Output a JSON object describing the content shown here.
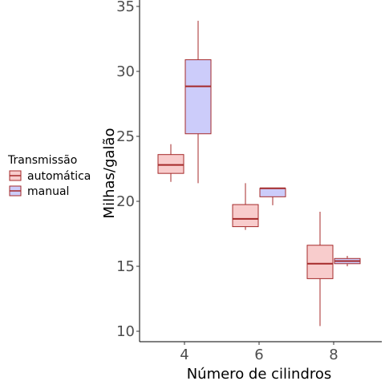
{
  "chart_data": {
    "type": "box",
    "xlabel": "Número de cilindros",
    "ylabel": "Milhas/galão",
    "ylim": [
      9.5,
      35
    ],
    "y_ticks": [
      10,
      15,
      20,
      25,
      30,
      35
    ],
    "categories": [
      "4",
      "6",
      "8"
    ],
    "grid": false,
    "legend": {
      "title": "Transmissão",
      "position": "left"
    },
    "series": [
      {
        "name": "automática",
        "fill": "#f8cccc",
        "stroke": "#a52a2a",
        "boxes": [
          {
            "category": "4",
            "min": 21.5,
            "q1": 22.15,
            "median": 22.8,
            "q3": 23.6,
            "max": 24.4
          },
          {
            "category": "6",
            "min": 17.8,
            "q1": 18.05,
            "median": 18.65,
            "q3": 19.75,
            "max": 21.4
          },
          {
            "category": "8",
            "min": 10.4,
            "q1": 14.05,
            "median": 15.2,
            "q3": 16.62,
            "max": 19.2
          }
        ]
      },
      {
        "name": "manual",
        "fill": "#ccccfa",
        "stroke": "#a52a2a",
        "boxes": [
          {
            "category": "4",
            "min": 21.4,
            "q1": 25.2,
            "median": 28.85,
            "q3": 30.9,
            "max": 33.9
          },
          {
            "category": "6",
            "min": 19.7,
            "q1": 20.35,
            "median": 21.0,
            "q3": 21.0,
            "max": 21.0
          },
          {
            "category": "8",
            "min": 15.0,
            "q1": 15.2,
            "median": 15.4,
            "q3": 15.6,
            "max": 15.8
          }
        ]
      }
    ]
  }
}
